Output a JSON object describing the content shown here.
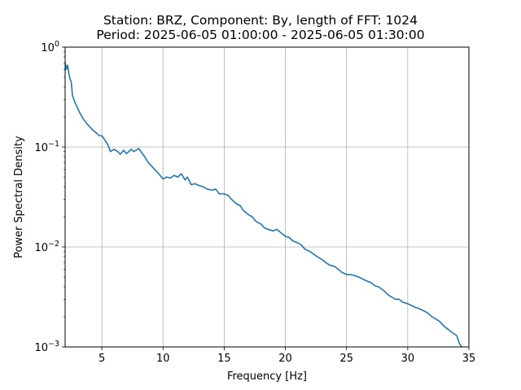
{
  "chart_data": {
    "type": "line",
    "title": "Station: BRZ, Component: By, length of FFT: 1024",
    "subtitle": "Period: 2025-06-05 01:00:00 - 2025-06-05 01:30:00",
    "xlabel": "Frequency [Hz]",
    "ylabel": "Power Spectral Density",
    "xlim": [
      2,
      35
    ],
    "ylim": [
      0.001,
      1
    ],
    "yscale": "log",
    "grid": true,
    "x_ticks": [
      5,
      10,
      15,
      20,
      25,
      30,
      35
    ],
    "x_tick_labels": [
      "5",
      "10",
      "15",
      "20",
      "25",
      "30",
      "35"
    ],
    "y_ticks": [
      0.001,
      0.01,
      0.1,
      1
    ],
    "y_tick_labels": [
      {
        "base": "10",
        "exp": "−3"
      },
      {
        "base": "10",
        "exp": "−2"
      },
      {
        "base": "10",
        "exp": "−1"
      },
      {
        "base": "10",
        "exp": "0"
      }
    ],
    "series_color": "#1f77b4",
    "series": [
      {
        "x": [
          2.0,
          2.1,
          2.2,
          2.3,
          2.4,
          2.5,
          2.6,
          2.8,
          3.0,
          3.2,
          3.5,
          3.8,
          4.0,
          4.2,
          4.5,
          4.8,
          5.0,
          5.2,
          5.5,
          5.7,
          6.0,
          6.3,
          6.5,
          6.8,
          7.0,
          7.2,
          7.4,
          7.6,
          7.8,
          8.0,
          8.2,
          8.5,
          8.8,
          9.0,
          9.3,
          9.6,
          10.0,
          10.3,
          10.6,
          10.9,
          11.2,
          11.5,
          11.8,
          12.0,
          12.3,
          12.6,
          13.0,
          13.3,
          13.6,
          14.0,
          14.3,
          14.6,
          15.0,
          15.3,
          15.6,
          16.0,
          16.3,
          16.6,
          17.0,
          17.3,
          17.6,
          18.0,
          18.3,
          18.6,
          19.0,
          19.3,
          19.6,
          20.0,
          20.3,
          20.6,
          21.0,
          21.3,
          21.6,
          22.0,
          22.3,
          22.6,
          23.0,
          23.3,
          23.6,
          24.0,
          24.3,
          24.6,
          25.0,
          25.3,
          25.6,
          26.0,
          26.3,
          26.6,
          27.0,
          27.3,
          27.6,
          28.0,
          28.3,
          28.6,
          29.0,
          29.3,
          29.6,
          30.0,
          30.3,
          30.6,
          31.0,
          31.3,
          31.6,
          32.0,
          32.3,
          32.6,
          33.0,
          33.3,
          33.6,
          34.0,
          34.2,
          34.4
        ],
        "values": [
          0.7,
          0.6,
          0.66,
          0.55,
          0.48,
          0.45,
          0.33,
          0.28,
          0.25,
          0.22,
          0.19,
          0.17,
          0.16,
          0.15,
          0.14,
          0.13,
          0.13,
          0.12,
          0.105,
          0.09,
          0.095,
          0.09,
          0.085,
          0.093,
          0.086,
          0.09,
          0.095,
          0.09,
          0.093,
          0.097,
          0.09,
          0.08,
          0.07,
          0.066,
          0.06,
          0.055,
          0.048,
          0.05,
          0.049,
          0.052,
          0.05,
          0.054,
          0.047,
          0.05,
          0.042,
          0.043,
          0.041,
          0.04,
          0.038,
          0.037,
          0.038,
          0.034,
          0.034,
          0.033,
          0.03,
          0.027,
          0.026,
          0.023,
          0.021,
          0.02,
          0.018,
          0.017,
          0.0155,
          0.015,
          0.0145,
          0.015,
          0.014,
          0.0128,
          0.0125,
          0.0115,
          0.011,
          0.0105,
          0.0095,
          0.009,
          0.0085,
          0.008,
          0.0075,
          0.007,
          0.0066,
          0.0064,
          0.006,
          0.0056,
          0.0053,
          0.0053,
          0.0052,
          0.005,
          0.0048,
          0.0046,
          0.0044,
          0.0041,
          0.004,
          0.0037,
          0.0034,
          0.0032,
          0.003,
          0.003,
          0.0028,
          0.0027,
          0.0026,
          0.0025,
          0.0024,
          0.0023,
          0.0022,
          0.002,
          0.0019,
          0.0018,
          0.0016,
          0.0015,
          0.0014,
          0.0013,
          0.0011,
          0.001
        ]
      }
    ]
  }
}
